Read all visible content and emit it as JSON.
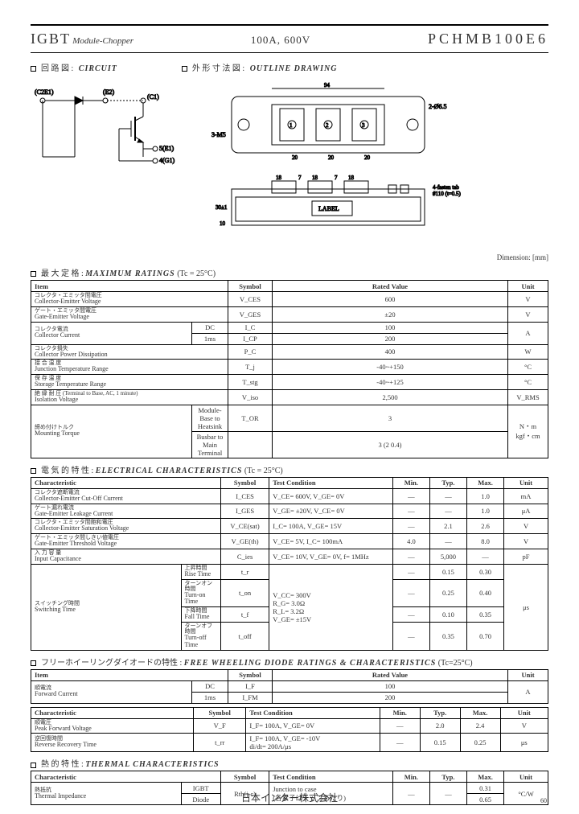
{
  "header": {
    "igbt": "IGBT",
    "subtitle": "Module-Chopper",
    "rating": "100A, 600V",
    "partno": "PCHMB100E6"
  },
  "sections": {
    "circuit_jp": "回 路 図 :",
    "circuit": "CIRCUIT",
    "outline_jp": "外 形 寸 法 図 :",
    "outline": "OUTLINE DRAWING",
    "dim_note": "Dimension: [mm]",
    "max_ratings_jp": "最 大 定 格 :",
    "max_ratings": "MAXIMUM RATINGS",
    "max_cond": "(Tc = 25°C)",
    "elec_jp": "電 気 的 特 性 :",
    "elec": "ELECTRICAL CHARACTERISTICS",
    "elec_cond": "(Tc = 25°C)",
    "fwd_jp": "フリーホイーリングダイオードの特性 :",
    "fwd": "FREE WHEELING DIODE RATINGS & CHARACTERISTICS",
    "fwd_cond": "(Tc=25°C)",
    "thermal_jp": "熱 的 特 性 :",
    "thermal": "THERMAL CHARACTERISTICS"
  },
  "table_headers": {
    "item": "Item",
    "symbol": "Symbol",
    "rated_value": "Rated Value",
    "unit": "Unit",
    "characteristic": "Characteristic",
    "test_condition": "Test Condition",
    "min": "Min.",
    "typ": "Typ.",
    "max": "Max."
  },
  "max_ratings": [
    {
      "jp": "コレクタ・エミッタ間電圧",
      "en": "Collector-Emitter Voltage",
      "sym": "V_CES",
      "val": "600",
      "unit": "V",
      "sub": null
    },
    {
      "jp": "ゲート・エミッタ間電圧",
      "en": "Gate-Emitter Voltage",
      "sym": "V_GES",
      "val": "±20",
      "unit": "V",
      "sub": null
    },
    {
      "jp": "コレクタ電流",
      "en": "Collector Current",
      "sub": [
        "DC",
        "1ms"
      ],
      "sym": [
        "I_C",
        "I_CP"
      ],
      "val": [
        "100",
        "200"
      ],
      "unit": "A"
    },
    {
      "jp": "コレクタ損失",
      "en": "Collector Power Dissipation",
      "sym": "P_C",
      "val": "400",
      "unit": "W",
      "sub": null
    },
    {
      "jp": "接 合 温 度",
      "en": "Junction Temperature Range",
      "sym": "T_j",
      "val": "-40~+150",
      "unit": "°C",
      "sub": null
    },
    {
      "jp": "保 存 温 度",
      "en": "Storage Temperature Range",
      "sym": "T_stg",
      "val": "-40~+125",
      "unit": "°C",
      "sub": null
    },
    {
      "jp": "絶 縁 耐 圧 (Terminal to Base, AC, 1 minute)",
      "en": "Isolation Voltage",
      "sym": "V_iso",
      "val": "2,500",
      "unit": "V_RMS",
      "sub": null
    },
    {
      "jp": "締め付けトルク",
      "en": "Mounting Torque",
      "sub": [
        "Module-Base to Heatsink",
        "Busbar to Main Terminal"
      ],
      "sym": "T_OR",
      "val": [
        "3",
        "3 (2 0.4)"
      ],
      "unit": "N・m\nkgf・cm"
    }
  ],
  "elec_char": [
    {
      "jp": "コレクタ遮断電流",
      "en": "Collector-Emitter Cut-Off Current",
      "sym": "I_CES",
      "tc": "V_CE= 600V, V_GE= 0V",
      "min": "—",
      "typ": "—",
      "max": "1.0",
      "unit": "mA"
    },
    {
      "jp": "ゲート漏れ電流",
      "en": "Gate-Emitter Leakage Current",
      "sym": "I_GES",
      "tc": "V_GE= ±20V, V_CE= 0V",
      "min": "—",
      "typ": "—",
      "max": "1.0",
      "unit": "μA"
    },
    {
      "jp": "コレクタ・エミッタ間飽和電圧",
      "en": "Collector-Emitter Saturation Voltage",
      "sym": "V_CE(sat)",
      "tc": "I_C= 100A, V_GE= 15V",
      "min": "—",
      "typ": "2.1",
      "max": "2.6",
      "unit": "V"
    },
    {
      "jp": "ゲート・エミッタ間しきい値電圧",
      "en": "Gate-Emitter Threshold Voltage",
      "sym": "V_GE(th)",
      "tc": "V_CE= 5V, I_C= 100mA",
      "min": "4.0",
      "typ": "—",
      "max": "8.0",
      "unit": "V"
    },
    {
      "jp": "入 力 容 量",
      "en": "Input Capacitance",
      "sym": "C_ies",
      "tc": "V_CE= 10V, V_GE= 0V, f= 1MHz",
      "min": "—",
      "typ": "5,000",
      "max": "—",
      "unit": "pF"
    }
  ],
  "switching": {
    "jp": "スイッチング時間",
    "en": "Switching Time",
    "rows": [
      {
        "jp": "上昇時間",
        "en": "Rise Time",
        "sym": "t_r",
        "min": "—",
        "typ": "0.15",
        "max": "0.30"
      },
      {
        "jp": "ターンオン時間",
        "en": "Turn-on Time",
        "sym": "t_on",
        "min": "—",
        "typ": "0.25",
        "max": "0.40"
      },
      {
        "jp": "下降時間",
        "en": "Fall Time",
        "sym": "t_f",
        "min": "—",
        "typ": "0.10",
        "max": "0.35"
      },
      {
        "jp": "ターンオフ時間",
        "en": "Turn-off Time",
        "sym": "t_off",
        "min": "—",
        "typ": "0.35",
        "max": "0.70"
      }
    ],
    "tc": "V_CC= 300V\nR_G= 3.0Ω\nR_L= 3.2Ω\nV_GE= ±15V",
    "unit": "μs"
  },
  "fwd1": [
    {
      "jp": "順電流",
      "en": "Forward Current",
      "sub": [
        "DC",
        "1ms"
      ],
      "sym": [
        "I_F",
        "I_FM"
      ],
      "val": [
        "100",
        "200"
      ],
      "unit": "A"
    }
  ],
  "fwd2": [
    {
      "jp": "順電圧",
      "en": "Peak Forward Voltage",
      "sym": "V_F",
      "tc": "I_F= 100A, V_GE= 0V",
      "min": "—",
      "typ": "2.0",
      "max": "2.4",
      "unit": "V"
    },
    {
      "jp": "逆回復時間",
      "en": "Reverse Recovery Time",
      "sym": "t_rr",
      "tc": "I_F= 100A, V_GE= -10V\ndi/dt= 200A/μs",
      "min": "—",
      "typ": "0.15",
      "max": "0.25",
      "unit": "μs"
    }
  ],
  "thermal_rows": [
    {
      "jp": "熱抵抗",
      "en": "Thermal Impedance",
      "sub": [
        "IGBT",
        "Diode"
      ],
      "sym": "Rth(j-c)",
      "tc": "Junction to case\n(各素子はチップあたり)",
      "min": "—",
      "typ": "—",
      "max": [
        "0.31",
        "0.65"
      ],
      "unit": "°C/W"
    }
  ],
  "circuit_labels": {
    "c2e1": "(C2E1)",
    "e2": "(E2)",
    "c1": "(C1)",
    "e1": "5(E1)",
    "g1": "4(G1)"
  },
  "outline_labels": {
    "label": "LABEL",
    "fasten": "4-fasten tab\n#110 (t=0.5)",
    "hole": "2-Ø6.5",
    "m5": "3-M5",
    "dims": [
      "18",
      "7",
      "18",
      "7",
      "18",
      "20",
      "20",
      "30±1",
      "10"
    ]
  },
  "footer": "日本インター株式会社",
  "pgno": "60"
}
